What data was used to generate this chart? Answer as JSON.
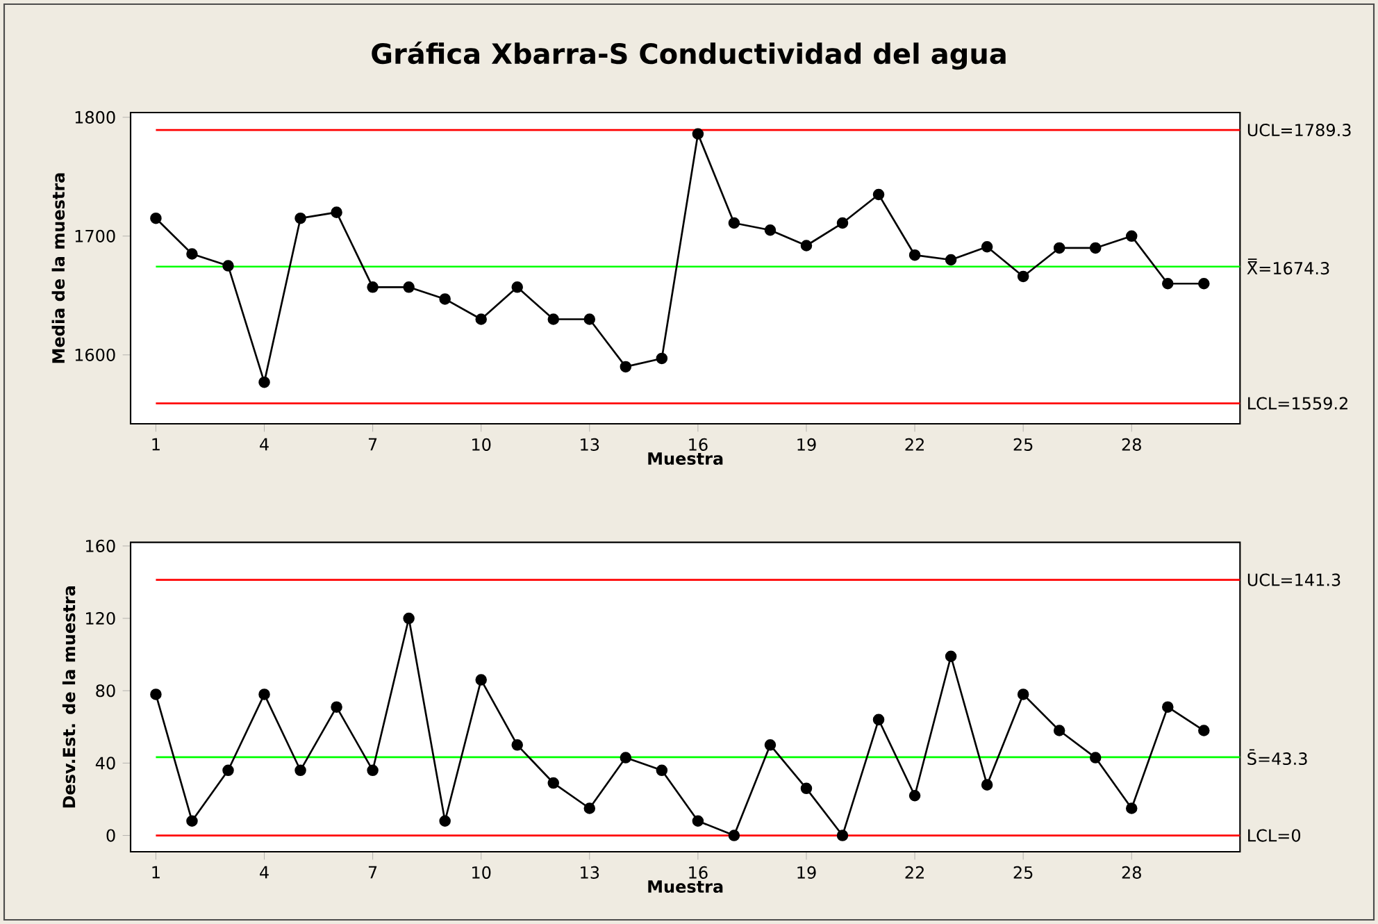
{
  "chart_data": [
    {
      "type": "line",
      "title": "Gráfica Xbarra-S Conductividad del agua",
      "xlabel": "Muestra",
      "ylabel": "Media de la muestra",
      "marker": "circle",
      "line_style": "solid",
      "x": [
        1,
        2,
        3,
        4,
        5,
        6,
        7,
        8,
        9,
        10,
        11,
        12,
        13,
        14,
        15,
        16,
        17,
        18,
        19,
        20,
        21,
        22,
        23,
        24,
        25,
        26,
        27,
        28,
        29,
        30
      ],
      "series": [
        {
          "color": "#000000",
          "values": [
            1715,
            1685,
            1675,
            1577,
            1715,
            1720,
            1657,
            1657,
            1647,
            1630,
            1657,
            1630,
            1630,
            1590,
            1597,
            1786,
            1711,
            1705,
            1692,
            1711,
            1735,
            1684,
            1680,
            1691,
            1666,
            1690,
            1690,
            1700,
            1660,
            1660
          ]
        }
      ],
      "xlim": [
        0.3,
        31
      ],
      "xticks": [
        1,
        4,
        7,
        10,
        13,
        16,
        19,
        22,
        25,
        28
      ],
      "ylim": [
        1542,
        1804
      ],
      "yticks": [
        1600,
        1700,
        1800
      ],
      "ref_lines": [
        {
          "axis": "y",
          "value": 1789.3,
          "label": "UCL=1789.3",
          "color": "#ff0000"
        },
        {
          "axis": "y",
          "value": 1674.3,
          "label": "X̿=1674.3",
          "color": "#00ff00"
        },
        {
          "axis": "y",
          "value": 1559.2,
          "label": "LCL=1559.2",
          "color": "#ff0000"
        }
      ]
    },
    {
      "type": "line",
      "xlabel": "Muestra",
      "ylabel": "Desv.Est. de la muestra",
      "marker": "circle",
      "line_style": "solid",
      "x": [
        1,
        2,
        3,
        4,
        5,
        6,
        7,
        8,
        9,
        10,
        11,
        12,
        13,
        14,
        15,
        16,
        17,
        18,
        19,
        20,
        21,
        22,
        23,
        24,
        25,
        26,
        27,
        28,
        29,
        30
      ],
      "series": [
        {
          "color": "#000000",
          "values": [
            78,
            8,
            36,
            78,
            36,
            71,
            36,
            120,
            8,
            86,
            50,
            29,
            15,
            43,
            36,
            8,
            0,
            50,
            26,
            0,
            64,
            22,
            99,
            28,
            78,
            58,
            43,
            15,
            71,
            58
          ]
        }
      ],
      "xlim": [
        0.3,
        31
      ],
      "xticks": [
        1,
        4,
        7,
        10,
        13,
        16,
        19,
        22,
        25,
        28
      ],
      "ylim": [
        -9,
        162
      ],
      "yticks": [
        0,
        40,
        80,
        120,
        160
      ],
      "ref_lines": [
        {
          "axis": "y",
          "value": 141.3,
          "label": "UCL=141.3",
          "color": "#ff0000"
        },
        {
          "axis": "y",
          "value": 43.3,
          "label": "S̄=43.3",
          "color": "#00ff00"
        },
        {
          "axis": "y",
          "value": 0,
          "label": "LCL=0",
          "color": "#ff0000"
        }
      ]
    }
  ]
}
